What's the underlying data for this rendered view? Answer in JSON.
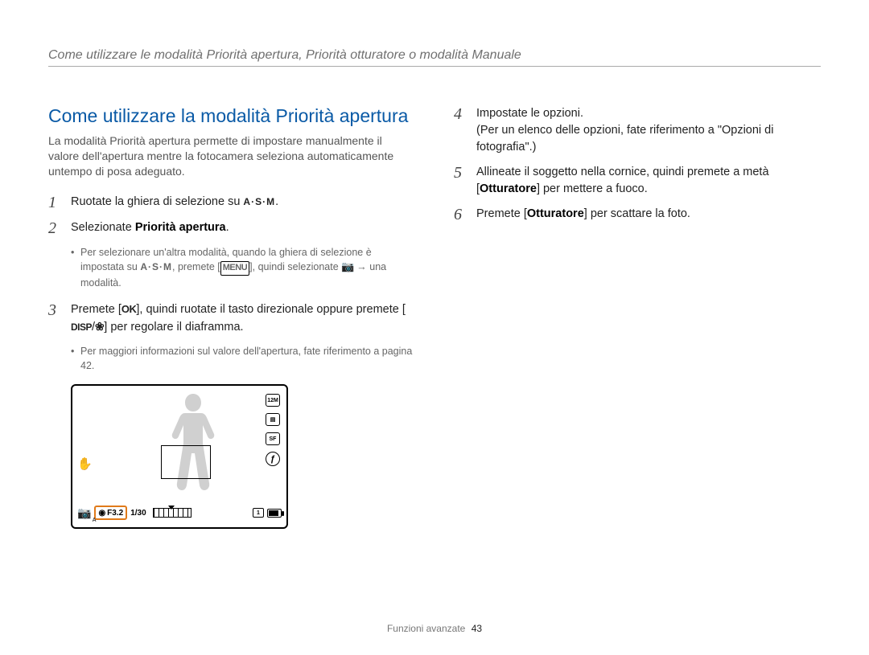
{
  "running_header": "Come utilizzare le modalità Priorità apertura, Priorità otturatore o modalità Manuale",
  "section_title": "Come utilizzare la modalità Priorità apertura",
  "intro": "La modalità Priorità apertura permette di impostare manualmente il valore dell'apertura mentre la fotocamera seleziona automaticamente untempo di posa adeguato.",
  "steps_left": [
    {
      "num": "1",
      "parts": [
        {
          "t": "Ruotate la ghiera di selezione su "
        },
        {
          "glyph": "asm",
          "label": "A·S·M"
        },
        {
          "t": "."
        }
      ]
    },
    {
      "num": "2",
      "parts": [
        {
          "t": "Selezionate "
        },
        {
          "bold": "Priorità apertura"
        },
        {
          "t": "."
        }
      ],
      "sub": [
        {
          "parts": [
            {
              "t": "Per selezionare un'altra modalità, quando la ghiera di selezione è impostata su "
            },
            {
              "glyph": "asm",
              "label": "A·S·M"
            },
            {
              "t": ", premete ["
            },
            {
              "glyph": "menu",
              "label": "MENU"
            },
            {
              "t": "], quindi selezionate "
            },
            {
              "glyph": "cam",
              "label": "📷"
            },
            {
              "t": " → una modalità."
            }
          ]
        }
      ]
    },
    {
      "num": "3",
      "parts": [
        {
          "t": "Premete ["
        },
        {
          "glyph": "ok",
          "label": "OK"
        },
        {
          "t": "], quindi ruotate il tasto direzionale oppure premete ["
        },
        {
          "glyph": "disp",
          "label": "DISP"
        },
        {
          "t": "/"
        },
        {
          "glyph": "flower",
          "label": "❀"
        },
        {
          "t": "] per regolare il diaframma."
        }
      ],
      "sub": [
        {
          "parts": [
            {
              "t": "Per maggiori informazioni sul valore dell'apertura, fate riferimento a pagina 42."
            }
          ]
        }
      ]
    }
  ],
  "steps_right": [
    {
      "num": "4",
      "parts": [
        {
          "t": "Impostate le opzioni."
        }
      ],
      "note_parts": [
        {
          "t": "(Per un elenco delle opzioni, fate riferimento a \"Opzioni di fotografia\".)"
        }
      ]
    },
    {
      "num": "5",
      "parts": [
        {
          "t": "Allineate il soggetto nella cornice, quindi premete a metà ["
        },
        {
          "bold": "Otturatore"
        },
        {
          "t": "] per mettere a fuoco."
        }
      ]
    },
    {
      "num": "6",
      "parts": [
        {
          "t": "Premete ["
        },
        {
          "bold": "Otturatore"
        },
        {
          "t": "] per scattare la foto."
        }
      ]
    }
  ],
  "lcd": {
    "right_icons": [
      "12M",
      "▤",
      "SF",
      "ƒ"
    ],
    "left_icon": "✋",
    "bottom": {
      "mode_icon": "📷",
      "mode_sub": "A",
      "aperture_icon": "◉",
      "aperture_value": "F3.2",
      "shutter": "1/30",
      "card_label": "1",
      "highlight_color": "#e07a1a"
    }
  },
  "footer": {
    "section": "Funzioni avanzate",
    "page": "43"
  },
  "colors": {
    "title": "#0a5aa6",
    "body": "#222222",
    "muted": "#6f6f6f",
    "highlight": "#e07a1a",
    "background": "#ffffff"
  }
}
